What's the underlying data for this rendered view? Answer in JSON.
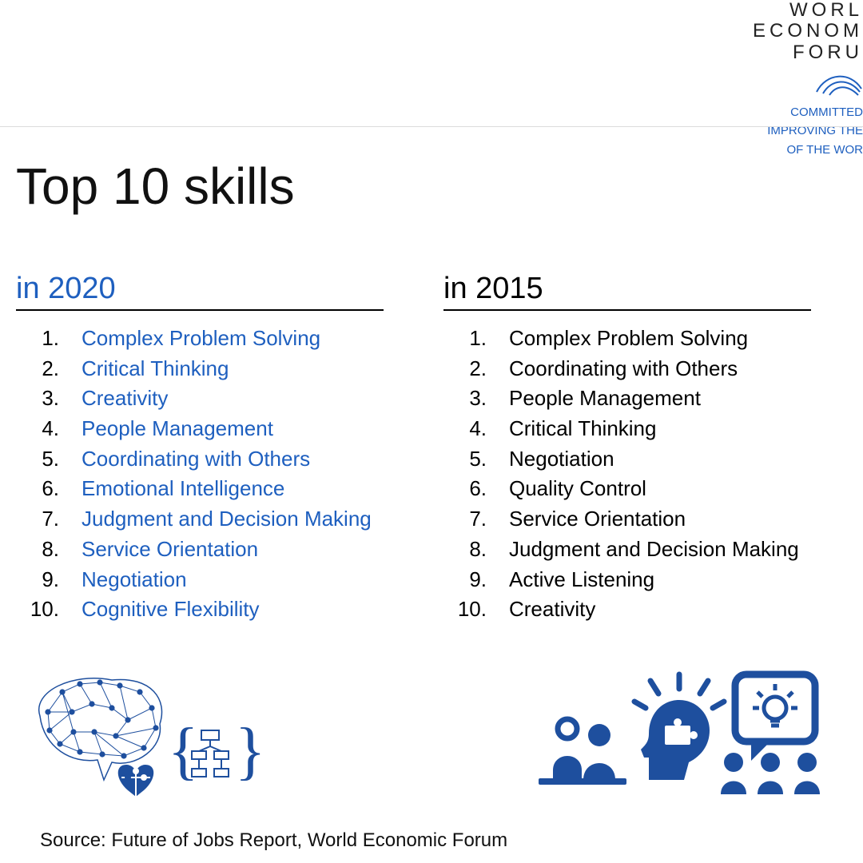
{
  "colors": {
    "accent_blue": "#1e5fbf",
    "icon_blue": "#1e4f9e",
    "text_black": "#111111",
    "divider": "#dcdcdc",
    "background": "#ffffff"
  },
  "typography": {
    "main_title_fontsize": 64,
    "col_heading_fontsize": 38,
    "list_fontsize": 26,
    "source_fontsize": 24
  },
  "logo": {
    "line1": "WORL",
    "line2": "ECONOM",
    "line3": "FORU",
    "tagline1": "COMMITTED",
    "tagline2": "IMPROVING THE",
    "tagline3": "OF THE WOR"
  },
  "title": "Top 10 skills",
  "columns": [
    {
      "heading": "in  2020",
      "color_key": "blue",
      "items": [
        "Complex Problem Solving",
        "Critical Thinking",
        "Creativity",
        "People Management",
        "Coordinating with Others",
        "Emotional Intelligence",
        "Judgment and Decision Making",
        "Service Orientation",
        "Negotiation",
        "Cognitive Flexibility"
      ]
    },
    {
      "heading": "in  2015",
      "color_key": "black",
      "items": [
        "Complex Problem Solving",
        "Coordinating with Others",
        "People Management",
        "Critical Thinking",
        "Negotiation",
        "Quality Control",
        "Service Orientation",
        "Judgment and Decision Making",
        "Active Listening",
        "Creativity"
      ]
    }
  ],
  "source": "Source: Future of Jobs Report, World Economic Forum"
}
